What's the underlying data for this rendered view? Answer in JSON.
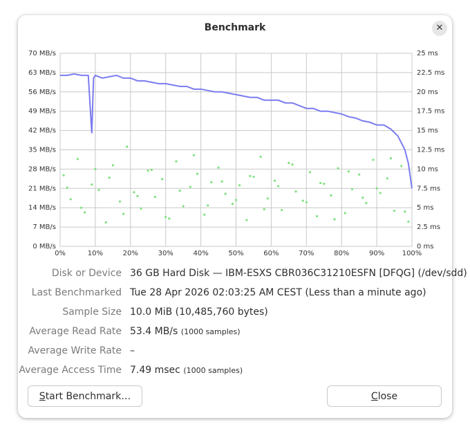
{
  "dialog": {
    "title": "Benchmark"
  },
  "chart_data": {
    "type": "line",
    "xlim": [
      0,
      100
    ],
    "xticks": [
      {
        "value": 0,
        "label": "0%"
      },
      {
        "value": 10,
        "label": "10%"
      },
      {
        "value": 20,
        "label": "20%"
      },
      {
        "value": 30,
        "label": "30%"
      },
      {
        "value": 40,
        "label": "40%"
      },
      {
        "value": 50,
        "label": "50%"
      },
      {
        "value": 60,
        "label": "60%"
      },
      {
        "value": 70,
        "label": "70%"
      },
      {
        "value": 80,
        "label": "80%"
      },
      {
        "value": 90,
        "label": "90%"
      },
      {
        "value": 100,
        "label": "100%"
      }
    ],
    "ylim": [
      0,
      70
    ],
    "yticks": [
      {
        "value": 0,
        "label": "0 MB/s"
      },
      {
        "value": 7,
        "label": "7 MB/s"
      },
      {
        "value": 14,
        "label": "14 MB/s"
      },
      {
        "value": 21,
        "label": "21 MB/s"
      },
      {
        "value": 28,
        "label": "28 MB/s"
      },
      {
        "value": 35,
        "label": "35 MB/s"
      },
      {
        "value": 42,
        "label": "42 MB/s"
      },
      {
        "value": 49,
        "label": "49 MB/s"
      },
      {
        "value": 56,
        "label": "56 MB/s"
      },
      {
        "value": 63,
        "label": "63 MB/s"
      },
      {
        "value": 70,
        "label": "70 MB/s"
      }
    ],
    "y2lim": [
      0,
      25
    ],
    "y2ticks": [
      {
        "value": 0,
        "label": "0 ms"
      },
      {
        "value": 2.5,
        "label": "2.5 ms"
      },
      {
        "value": 5,
        "label": "5 ms"
      },
      {
        "value": 7.5,
        "label": "7.5 ms"
      },
      {
        "value": 10,
        "label": "10 ms"
      },
      {
        "value": 12.5,
        "label": "12.5 ms"
      },
      {
        "value": 15,
        "label": "15 ms"
      },
      {
        "value": 17.5,
        "label": "17.5 ms"
      },
      {
        "value": 20,
        "label": "20 ms"
      },
      {
        "value": 22.5,
        "label": "22.5 ms"
      },
      {
        "value": 25,
        "label": "25 ms"
      }
    ],
    "grid": true,
    "series": [
      {
        "type": "line",
        "color": "#7b7bf0",
        "x": [
          0,
          2,
          4,
          6,
          8,
          9,
          9.5,
          10,
          12,
          14,
          16,
          18,
          20,
          22,
          24,
          26,
          28,
          30,
          32,
          34,
          36,
          38,
          40,
          42,
          44,
          46,
          48,
          50,
          52,
          54,
          56,
          58,
          60,
          62,
          64,
          66,
          68,
          70,
          72,
          74,
          76,
          78,
          80,
          82,
          84,
          86,
          88,
          90,
          92,
          94,
          96,
          98,
          99,
          100
        ],
        "values": [
          62,
          62,
          62.5,
          62,
          62,
          41,
          61,
          62,
          61,
          61.5,
          62,
          61,
          61,
          60,
          60,
          59.5,
          59,
          59,
          58.5,
          58,
          58,
          57,
          57,
          56.5,
          56,
          56,
          55.5,
          55,
          54.5,
          54,
          54,
          53,
          53,
          53,
          52,
          52,
          51,
          50,
          50,
          49,
          49,
          48.5,
          48,
          47,
          46.5,
          45.5,
          45,
          44,
          44,
          42.5,
          40,
          35,
          30,
          21
        ]
      },
      {
        "type": "scatter",
        "color": "#7fe07f",
        "axis": "y2",
        "x": [
          1,
          3,
          5,
          7,
          9,
          11,
          13,
          15,
          17,
          19,
          21,
          23,
          25,
          27,
          29,
          31,
          33,
          35,
          37,
          39,
          41,
          43,
          45,
          47,
          49,
          51,
          53,
          55,
          57,
          59,
          61,
          63,
          65,
          67,
          69,
          71,
          73,
          75,
          77,
          79,
          81,
          83,
          85,
          87,
          89,
          91,
          93,
          95,
          97,
          99,
          2,
          6,
          10,
          14,
          18,
          22,
          26,
          30,
          34,
          38,
          42,
          46,
          50,
          54,
          58,
          62,
          66,
          70,
          74,
          78,
          82,
          86,
          90,
          94,
          98
        ],
        "values": [
          9.2,
          6.1,
          11.3,
          4.4,
          8.0,
          7.3,
          3.1,
          10.5,
          5.8,
          12.9,
          7.0,
          4.9,
          9.8,
          6.4,
          8.7,
          3.6,
          11.0,
          5.2,
          7.7,
          9.4,
          4.1,
          8.3,
          10.2,
          6.8,
          5.5,
          7.9,
          3.4,
          9.0,
          11.6,
          6.2,
          8.5,
          4.7,
          10.8,
          7.1,
          5.9,
          9.6,
          3.9,
          8.1,
          6.6,
          10.1,
          4.3,
          7.4,
          9.3,
          5.6,
          11.2,
          6.9,
          8.8,
          4.6,
          10.4,
          3.2,
          7.6,
          5.0,
          10.0,
          8.9,
          4.2,
          6.5,
          9.9,
          3.8,
          7.2,
          11.8,
          5.3,
          8.4,
          6.0,
          9.1,
          4.8,
          7.8,
          10.6,
          5.7,
          8.2,
          3.5,
          9.7,
          6.3,
          7.5,
          11.4,
          4.5
        ]
      }
    ]
  },
  "details": [
    {
      "label": "Disk or Device",
      "value": "36 GB Hard Disk — IBM-ESXS CBR036C31210ESFN [DFQG] (/dev/sdd)"
    },
    {
      "label": "Last Benchmarked",
      "value": "Tue 28 Apr 2026 02:03:25 AM CEST (Less than a minute ago)"
    },
    {
      "label": "Sample Size",
      "value": "10.0 MiB (10,485,760 bytes)"
    },
    {
      "label": "Average Read Rate",
      "value": "53.4 MB/s",
      "note": "(1000 samples)"
    },
    {
      "label": "Average Write Rate",
      "value": "–"
    },
    {
      "label": "Average Access Time",
      "value": "7.49 msec",
      "note": "(1000 samples)"
    }
  ],
  "buttons": {
    "start": "Start Benchmark…",
    "close": "Close"
  }
}
